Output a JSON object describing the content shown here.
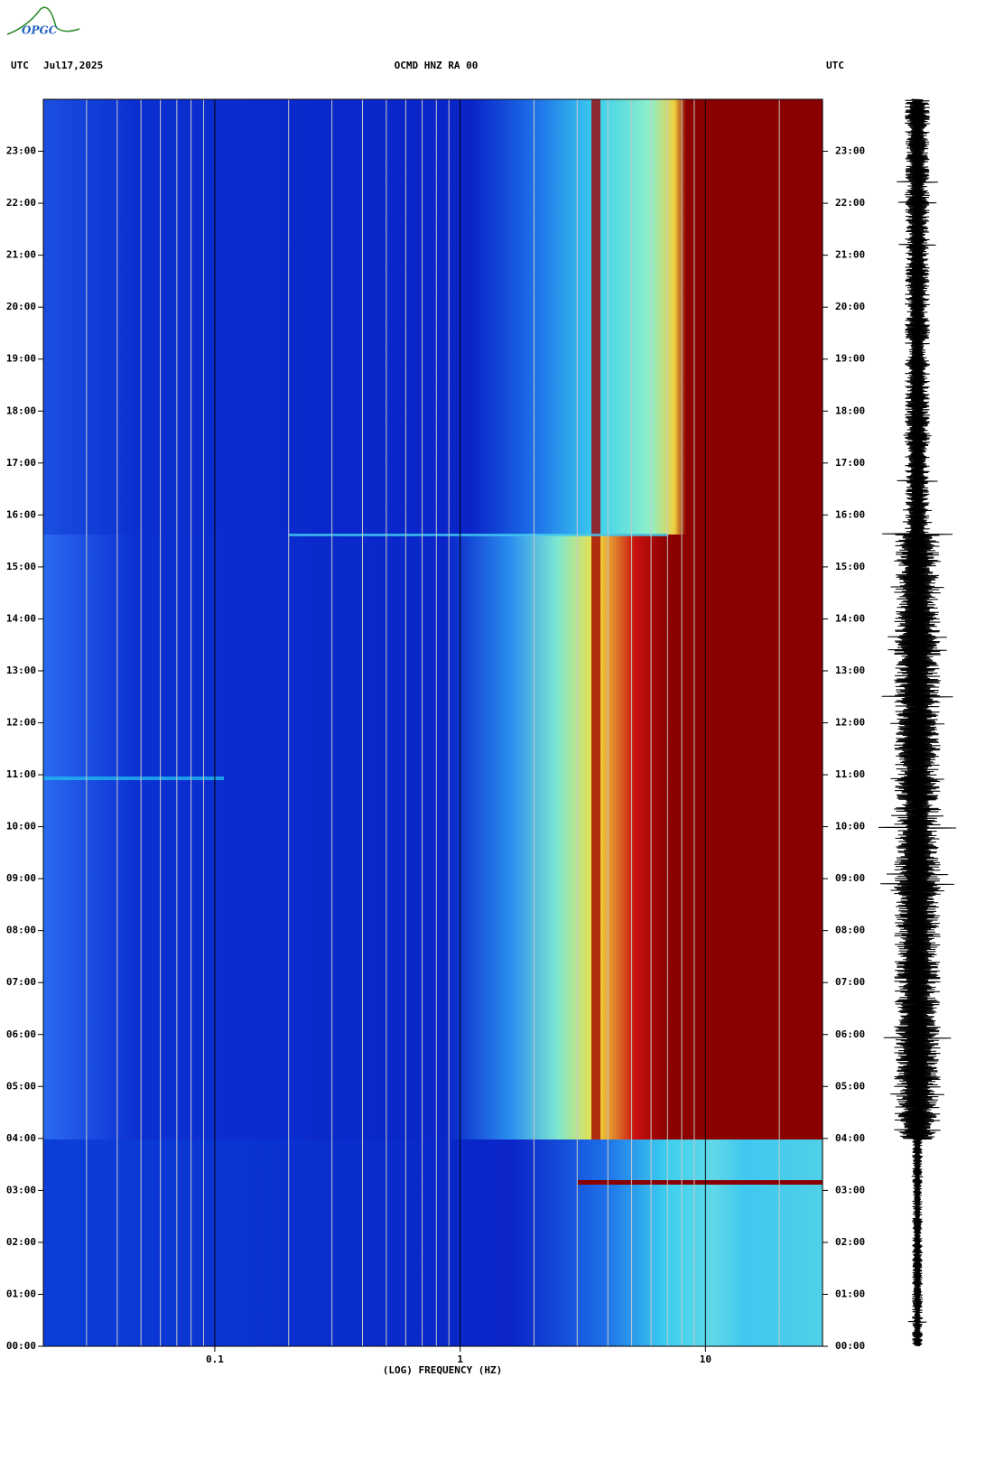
{
  "chart_data": {
    "type": "spectrogram",
    "title": "OCMD HNZ RA 00",
    "logo": "OPGC",
    "timezone_left": "UTC",
    "date": "Jul17,2025",
    "timezone_right": "UTC",
    "x_label": "(LOG) FREQUENCY (HZ)",
    "x_scale": "log",
    "xlim": [
      0.02,
      30
    ],
    "xticks": [
      {
        "value": 0.1,
        "label": "0.1"
      },
      1,
      10
    ],
    "xminorticks": [
      0.03,
      0.04,
      0.05,
      0.06,
      0.07,
      0.08,
      0.09,
      0.2,
      0.3,
      0.4,
      0.5,
      0.6,
      0.7,
      0.8,
      0.9,
      2,
      3,
      4,
      5,
      6,
      7,
      8,
      9,
      20
    ],
    "ylim": [
      0,
      24
    ],
    "yticks": [
      {
        "value": 0,
        "label": "00:00"
      },
      {
        "value": 1,
        "label": "01:00"
      },
      {
        "value": 2,
        "label": "02:00"
      },
      {
        "value": 3,
        "label": "03:00"
      },
      {
        "value": 4,
        "label": "04:00"
      },
      {
        "value": 5,
        "label": "05:00"
      },
      {
        "value": 6,
        "label": "06:00"
      },
      {
        "value": 7,
        "label": "07:00"
      },
      {
        "value": 8,
        "label": "08:00"
      },
      {
        "value": 9,
        "label": "09:00"
      },
      {
        "value": 10,
        "label": "10:00"
      },
      {
        "value": 11,
        "label": "11:00"
      },
      {
        "value": 12,
        "label": "12:00"
      },
      {
        "value": 13,
        "label": "13:00"
      },
      {
        "value": 14,
        "label": "14:00"
      },
      {
        "value": 15,
        "label": "15:00"
      },
      {
        "value": 16,
        "label": "16:00"
      },
      {
        "value": 17,
        "label": "17:00"
      },
      {
        "value": 18,
        "label": "18:00"
      },
      {
        "value": 19,
        "label": "19:00"
      },
      {
        "value": 20,
        "label": "20:00"
      },
      {
        "value": 21,
        "label": "21:00"
      },
      {
        "value": 22,
        "label": "22:00"
      },
      {
        "value": 23,
        "label": "23:00"
      }
    ]
  }
}
